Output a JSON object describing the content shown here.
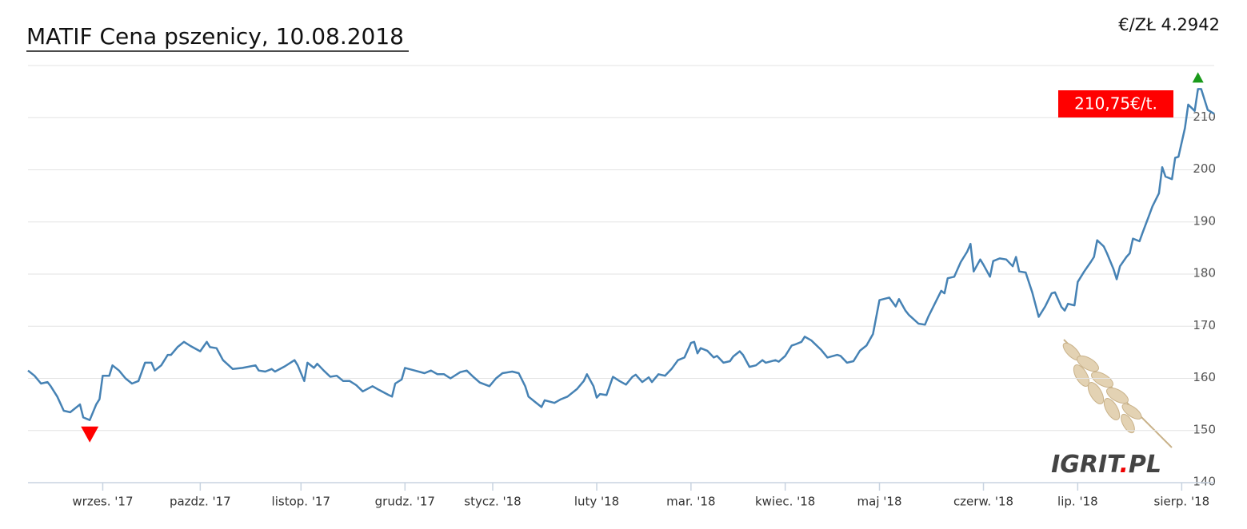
{
  "chart_data": {
    "type": "line",
    "title": "MATIF Cena pszenicy, 10.08.2018",
    "rate": "€/ZŁ  4.2942",
    "last_label": "210,75€/t.",
    "logo": [
      "IGRIT",
      ".",
      "PL"
    ],
    "color": "#4682b4",
    "grid": true,
    "xlim": [
      0,
      365
    ],
    "xticks": [
      {
        "value": 23,
        "label": "wrzes. '17"
      },
      {
        "value": 53,
        "label": "pazdz. '17"
      },
      {
        "value": 84,
        "label": "listop. '17"
      },
      {
        "value": 116,
        "label": "grudz. '17"
      },
      {
        "value": 143,
        "label": "stycz. '18"
      },
      {
        "value": 175,
        "label": "luty '18"
      },
      {
        "value": 204,
        "label": "mar. '18"
      },
      {
        "value": 233,
        "label": "kwiec. '18"
      },
      {
        "value": 262,
        "label": "maj '18"
      },
      {
        "value": 294,
        "label": "czerw. '18"
      },
      {
        "value": 323,
        "label": "lip. '18"
      },
      {
        "value": 355,
        "label": "sierp. '18"
      }
    ],
    "ylim": [
      140,
      220
    ],
    "yticks": [
      140,
      150,
      160,
      170,
      180,
      190,
      200,
      210
    ],
    "x": [
      0,
      2,
      4,
      6,
      7,
      9,
      11,
      13,
      16,
      17,
      19,
      21,
      22,
      23,
      25,
      26,
      28,
      30,
      32,
      34,
      36,
      38,
      39,
      41,
      43,
      44,
      46,
      48,
      50,
      53,
      55,
      56,
      58,
      60,
      63,
      66,
      70,
      71,
      73,
      75,
      76,
      79,
      82,
      83,
      85,
      86,
      88,
      89,
      91,
      93,
      95,
      97,
      99,
      101,
      103,
      106,
      108,
      111,
      112,
      113,
      115,
      116,
      119,
      122,
      124,
      126,
      128,
      130,
      133,
      135,
      137,
      139,
      142,
      144,
      146,
      149,
      151,
      153,
      154,
      156,
      158,
      159,
      162,
      164,
      166,
      169,
      171,
      172,
      174,
      175,
      176,
      178,
      180,
      182,
      184,
      186,
      187,
      189,
      191,
      192,
      194,
      196,
      198,
      200,
      202,
      204,
      205,
      206,
      207,
      209,
      211,
      212,
      214,
      216,
      217,
      219,
      220,
      222,
      224,
      226,
      227,
      230,
      231,
      233,
      235,
      236,
      238,
      239,
      241,
      244,
      246,
      249,
      250,
      252,
      254,
      256,
      258,
      260,
      262,
      265,
      267,
      268,
      270,
      271,
      274,
      276,
      277,
      279,
      281,
      282,
      283,
      285,
      287,
      289,
      290,
      291,
      293,
      294,
      296,
      297,
      299,
      301,
      303,
      304,
      305,
      307,
      309,
      311,
      313,
      315,
      316,
      318,
      319,
      320,
      322,
      323,
      325,
      327,
      328,
      329,
      331,
      332,
      334,
      335,
      336,
      338,
      339,
      340,
      342,
      343,
      345,
      346,
      348,
      349,
      350,
      352,
      353,
      354,
      356,
      357,
      359,
      360,
      361,
      363,
      365
    ],
    "values": [
      161.5,
      160.5,
      159,
      159.3,
      158.5,
      156.5,
      153.8,
      153.5,
      155,
      152.5,
      152,
      155,
      156,
      160.5,
      160.5,
      162.5,
      161.5,
      160,
      159,
      159.5,
      163,
      163,
      161.5,
      162.5,
      164.5,
      164.5,
      166,
      167,
      166.2,
      165.2,
      167,
      166,
      165.8,
      163.5,
      161.8,
      162,
      162.5,
      161.5,
      161.3,
      161.8,
      161.3,
      162.3,
      163.5,
      162.5,
      159.5,
      163,
      162,
      162.8,
      161.5,
      160.3,
      160.5,
      159.5,
      159.5,
      158.7,
      157.5,
      158.5,
      157.8,
      156.8,
      156.5,
      159,
      159.8,
      162,
      161.5,
      161,
      161.5,
      160.8,
      160.8,
      160,
      161.2,
      161.5,
      160.3,
      159.2,
      158.5,
      160,
      161,
      161.3,
      161,
      158.5,
      156.5,
      155.5,
      154.5,
      155.8,
      155.3,
      156,
      156.5,
      158,
      159.5,
      160.8,
      158.5,
      156.3,
      157,
      156.8,
      160.3,
      159.5,
      158.8,
      160.3,
      160.7,
      159.3,
      160.2,
      159.3,
      160.8,
      160.5,
      161.8,
      163.5,
      164,
      166.8,
      167,
      164.8,
      165.8,
      165.3,
      164,
      164.3,
      163,
      163.3,
      164.2,
      165.2,
      164.5,
      162.2,
      162.5,
      163.5,
      163,
      163.5,
      163.2,
      164.3,
      166.3,
      166.5,
      167,
      168,
      167.3,
      165.5,
      164,
      164.5,
      164.3,
      163,
      163.3,
      165.3,
      166.3,
      168.5,
      175,
      175.5,
      173.8,
      175.2,
      173,
      172.2,
      170.5,
      170.3,
      171.8,
      174.3,
      176.8,
      176.3,
      179.2,
      179.5,
      182.3,
      184.3,
      185.8,
      180.5,
      182.8,
      181.8,
      179.5,
      182.5,
      183,
      182.8,
      181.5,
      183.3,
      180.5,
      180.3,
      176.5,
      171.8,
      173.8,
      176.3,
      176.5,
      173.7,
      173,
      174.3,
      174,
      178.5,
      180.5,
      182.3,
      183.3,
      186.5,
      185.3,
      184,
      181,
      179,
      181.5,
      183.3,
      184,
      186.8,
      186.3,
      188,
      191.3,
      193,
      195.5,
      200.5,
      198.7,
      198.2,
      202.3,
      202.5,
      208,
      212.5,
      211.3,
      215.5,
      215.5,
      211.5,
      210.75
    ]
  }
}
